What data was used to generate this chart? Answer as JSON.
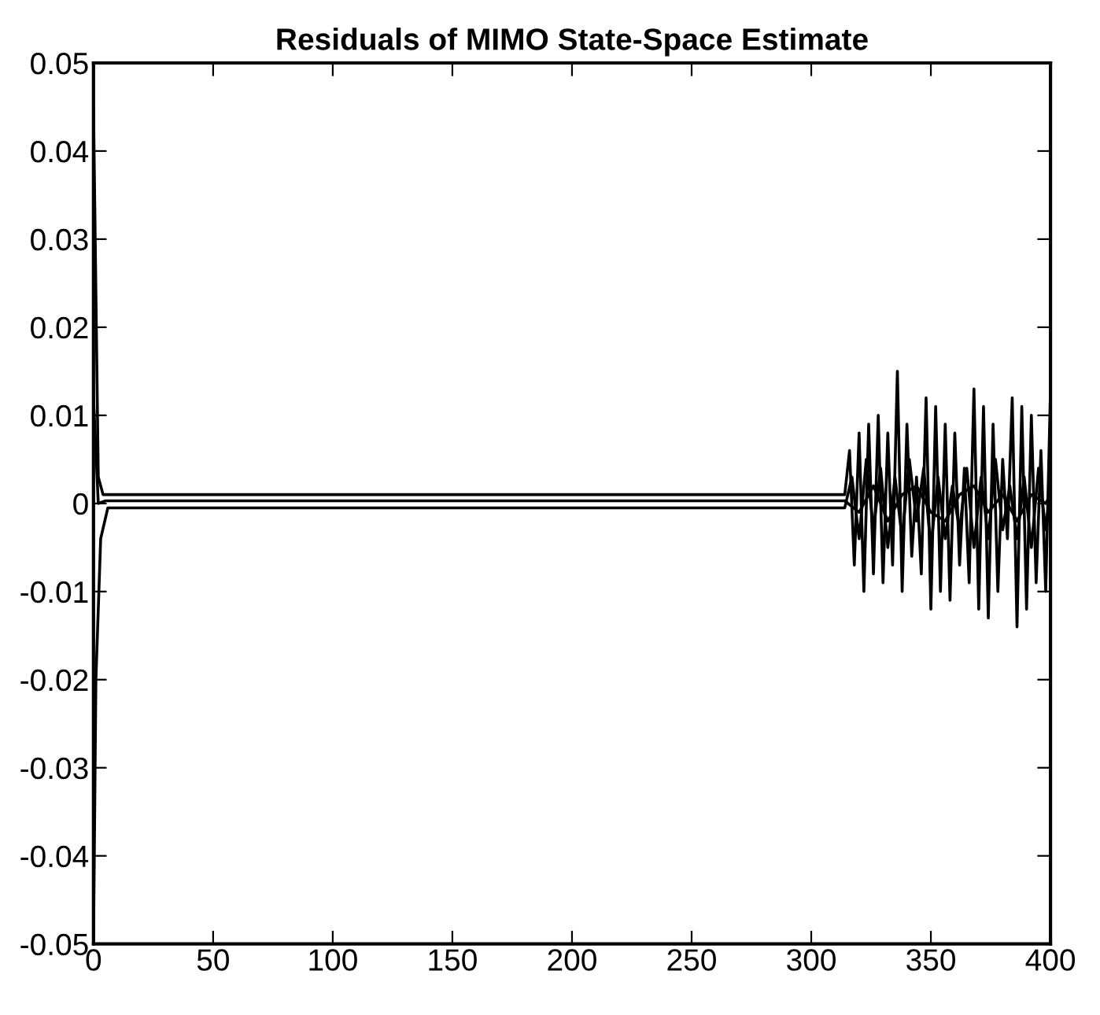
{
  "chart_data": {
    "type": "line",
    "title": "Residuals of MIMO State-Space Estimate",
    "xlim": [
      0,
      400
    ],
    "xticks": [
      0,
      50,
      100,
      150,
      200,
      250,
      300,
      350,
      400
    ],
    "ylim": [
      -0.05,
      0.05
    ],
    "yticks": [
      -0.05,
      -0.04,
      -0.03,
      -0.02,
      -0.01,
      0,
      0.01,
      0.02,
      0.03,
      0.04,
      0.05
    ],
    "grid": false,
    "marker": "none",
    "line_style": "solid",
    "series": [
      {
        "color": "#000000",
        "x": [
          0,
          2,
          4,
          314,
          316,
          318,
          320,
          322,
          324,
          326,
          328,
          330,
          332,
          334,
          336,
          338,
          340,
          342,
          344,
          346,
          348,
          350,
          352,
          354,
          356,
          358,
          360,
          362,
          364,
          366,
          368,
          370,
          372,
          374,
          376,
          378,
          380,
          382,
          384,
          386,
          388,
          390,
          392,
          394,
          396,
          398,
          400
        ],
        "values": [
          0.045,
          0.003,
          0.001,
          0.001,
          0.006,
          -0.007,
          0.008,
          -0.01,
          0.009,
          -0.008,
          0.01,
          -0.009,
          0.008,
          -0.007,
          0.015,
          -0.01,
          0.009,
          -0.006,
          0.003,
          -0.008,
          0.012,
          -0.012,
          0.011,
          -0.01,
          0.009,
          -0.011,
          0.008,
          -0.007,
          0.004,
          -0.009,
          0.013,
          -0.012,
          0.011,
          -0.013,
          0.009,
          -0.01,
          0.005,
          -0.004,
          0.012,
          -0.014,
          0.011,
          -0.012,
          0.01,
          -0.009,
          0.006,
          -0.01,
          0.013
        ]
      },
      {
        "color": "#000000",
        "x": [
          0,
          1,
          3,
          6,
          314,
          317,
          320,
          323,
          326,
          329,
          332,
          335,
          338,
          341,
          344,
          347,
          350,
          353,
          356,
          359,
          362,
          365,
          368,
          371,
          374,
          377,
          380,
          383,
          386,
          389,
          392,
          395,
          398,
          400
        ],
        "values": [
          -0.05,
          -0.02,
          -0.004,
          -0.0005,
          -0.0005,
          0.003,
          -0.004,
          0.005,
          -0.003,
          0.004,
          -0.005,
          0.003,
          -0.004,
          0.005,
          -0.002,
          0.004,
          -0.005,
          0.003,
          -0.004,
          0.002,
          -0.003,
          0.004,
          -0.005,
          0.003,
          -0.004,
          0.005,
          -0.003,
          0.002,
          -0.004,
          0.003,
          -0.005,
          0.004,
          -0.003,
          0.002
        ]
      },
      {
        "color": "#000000",
        "x": [
          0,
          2,
          5,
          314,
          320,
          326,
          332,
          338,
          344,
          350,
          356,
          362,
          368,
          374,
          380,
          386,
          392,
          398,
          400
        ],
        "values": [
          0.012,
          0.0,
          0.0003,
          0.0003,
          -0.001,
          0.002,
          -0.002,
          0.001,
          0.002,
          -0.001,
          -0.002,
          0.001,
          0.002,
          -0.001,
          0.001,
          -0.002,
          0.001,
          0.0,
          0.001
        ]
      }
    ]
  }
}
